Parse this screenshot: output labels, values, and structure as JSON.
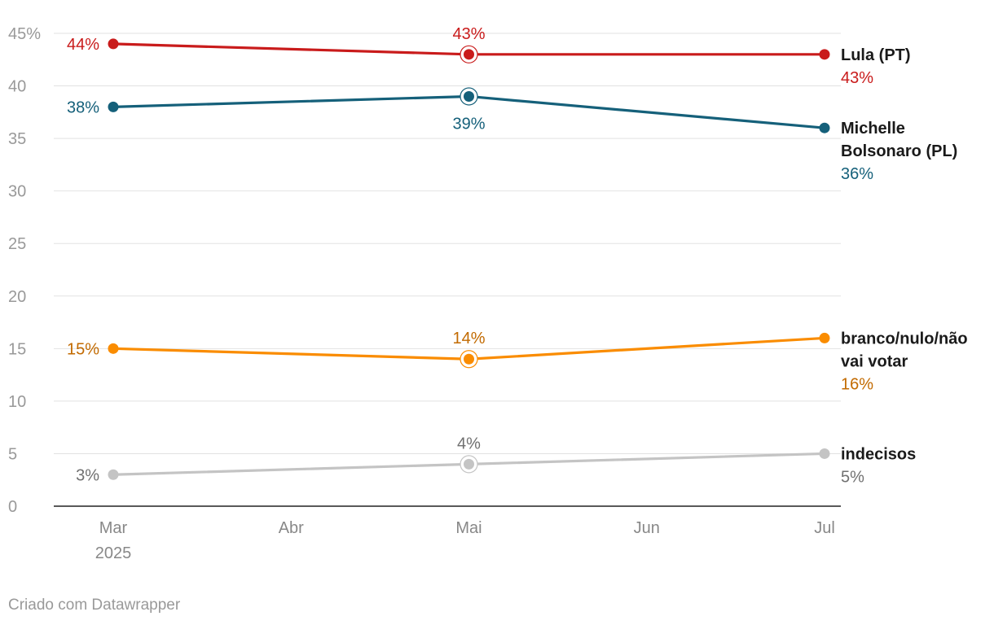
{
  "chart_data": {
    "type": "line",
    "x_months": [
      "Mar",
      "Abr",
      "Mai",
      "Jun",
      "Jul"
    ],
    "x_year_label": "2025",
    "ylim": [
      0,
      45
    ],
    "yticks": [
      {
        "value": 0,
        "label": "0"
      },
      {
        "value": 5,
        "label": "5"
      },
      {
        "value": 10,
        "label": "10"
      },
      {
        "value": 15,
        "label": "15"
      },
      {
        "value": 20,
        "label": "20"
      },
      {
        "value": 25,
        "label": "25"
      },
      {
        "value": 30,
        "label": "30"
      },
      {
        "value": 35,
        "label": "35"
      },
      {
        "value": 40,
        "label": "40"
      },
      {
        "value": 45,
        "label": "45%"
      }
    ],
    "grid": true,
    "series": [
      {
        "name": "Lula (PT)",
        "label_lines": [
          "Lula (PT)"
        ],
        "color": "#c91b1b",
        "label_color": "#c91b1b",
        "points": [
          {
            "x": "Mar",
            "y": 44,
            "label": "44%"
          },
          {
            "x": "Mai",
            "y": 43,
            "label": "43%"
          },
          {
            "x": "Jul",
            "y": 43,
            "label": "43%"
          }
        ]
      },
      {
        "name": "Michelle Bolsonaro (PL)",
        "label_lines": [
          "Michelle",
          "Bolsonaro (PL)"
        ],
        "color": "#15607a",
        "label_color": "#15607a",
        "points": [
          {
            "x": "Mar",
            "y": 38,
            "label": "38%"
          },
          {
            "x": "Mai",
            "y": 39,
            "label": "39%"
          },
          {
            "x": "Jul",
            "y": 36,
            "label": "36%"
          }
        ]
      },
      {
        "name": "branco/nulo/não vai votar",
        "label_lines": [
          "branco/nulo/não",
          "vai votar"
        ],
        "color": "#fa8c00",
        "label_color": "#c26a00",
        "points": [
          {
            "x": "Mar",
            "y": 15,
            "label": "15%"
          },
          {
            "x": "Mai",
            "y": 14,
            "label": "14%"
          },
          {
            "x": "Jul",
            "y": 16,
            "label": "16%"
          }
        ]
      },
      {
        "name": "indecisos",
        "label_lines": [
          "indecisos"
        ],
        "color": "#c4c4c4",
        "label_color": "#707070",
        "points": [
          {
            "x": "Mar",
            "y": 3,
            "label": "3%"
          },
          {
            "x": "Mai",
            "y": 4,
            "label": "4%"
          },
          {
            "x": "Jul",
            "y": 5,
            "label": "5%"
          }
        ]
      }
    ]
  },
  "footer": {
    "credit": "Criado com Datawrapper"
  }
}
